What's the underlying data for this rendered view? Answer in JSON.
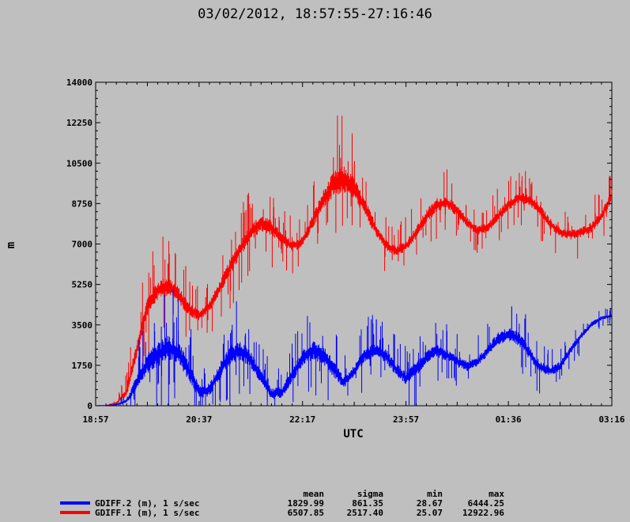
{
  "title": "03/02/2012, 18:57:55-27:16:46",
  "chart_data": {
    "type": "line",
    "title": "03/02/2012, 18:57:55-27:16:46",
    "xlabel": "UTC",
    "ylabel": "m",
    "ylim": [
      0,
      14000
    ],
    "yticks": [
      "0",
      "1750",
      "3500",
      "5250",
      "7000",
      "8750",
      "10500",
      "12250",
      "14000"
    ],
    "xticks": [
      "18:57",
      "20:37",
      "22:17",
      "23:57",
      "01:36",
      "03:16"
    ],
    "grid": false,
    "series": [
      {
        "name": "GDIFF.2 (m), 1 s/sec",
        "color": "#0000ff",
        "x": [
          "18:57",
          "19:07",
          "19:17",
          "19:27",
          "19:37",
          "19:47",
          "19:57",
          "20:07",
          "20:17",
          "20:27",
          "20:37",
          "20:47",
          "20:57",
          "21:07",
          "21:17",
          "21:27",
          "21:37",
          "21:47",
          "21:57",
          "22:07",
          "22:17",
          "22:27",
          "22:37",
          "22:47",
          "22:57",
          "23:07",
          "23:17",
          "23:27",
          "23:37",
          "23:47",
          "23:57",
          "00:07",
          "00:17",
          "00:27",
          "00:37",
          "00:47",
          "00:57",
          "01:06",
          "01:16",
          "01:26",
          "01:36",
          "01:46",
          "01:56",
          "02:06",
          "02:16",
          "02:26",
          "02:36",
          "02:46",
          "02:56",
          "03:06",
          "03:16"
        ],
        "values": [
          0,
          10,
          50,
          200,
          1000,
          1800,
          2200,
          2500,
          2300,
          1500,
          600,
          700,
          1500,
          2200,
          2400,
          2000,
          1200,
          500,
          600,
          1300,
          2100,
          2400,
          2200,
          1600,
          1000,
          1500,
          2200,
          2400,
          2200,
          1600,
          1200,
          1600,
          2100,
          2400,
          2200,
          1900,
          1700,
          1900,
          2400,
          2900,
          3100,
          2900,
          2300,
          1700,
          1500,
          1700,
          2400,
          3000,
          3500,
          3800,
          3900
        ],
        "spread": [
          0,
          5,
          30,
          100,
          600,
          800,
          900,
          900,
          800,
          700,
          500,
          500,
          600,
          700,
          700,
          600,
          500,
          400,
          400,
          500,
          600,
          700,
          700,
          600,
          400,
          400,
          500,
          500,
          500,
          450,
          450,
          500,
          500,
          500,
          450,
          400,
          350,
          350,
          400,
          450,
          500,
          500,
          450,
          400,
          350,
          350,
          300,
          250,
          200,
          150,
          100
        ],
        "stats": {
          "mean": "1829.99",
          "sigma": "861.35",
          "min": "28.67",
          "max": "6444.25"
        }
      },
      {
        "name": "GDIFF.1 (m), 1 s/sec",
        "color": "#ff0000",
        "x": [
          "18:57",
          "19:07",
          "19:17",
          "19:27",
          "19:37",
          "19:47",
          "19:57",
          "20:07",
          "20:17",
          "20:27",
          "20:37",
          "20:47",
          "20:57",
          "21:07",
          "21:17",
          "21:27",
          "21:37",
          "21:47",
          "21:57",
          "22:07",
          "22:17",
          "22:27",
          "22:37",
          "22:47",
          "22:57",
          "23:07",
          "23:17",
          "23:27",
          "23:37",
          "23:47",
          "23:57",
          "00:07",
          "00:17",
          "00:27",
          "00:37",
          "00:47",
          "00:57",
          "01:06",
          "01:16",
          "01:26",
          "01:36",
          "01:46",
          "01:56",
          "02:06",
          "02:16",
          "02:26",
          "02:36",
          "02:46",
          "02:56",
          "03:06",
          "03:16"
        ],
        "values": [
          0,
          10,
          100,
          600,
          2500,
          4300,
          5000,
          5200,
          4800,
          4200,
          3900,
          4300,
          5100,
          6000,
          6800,
          7500,
          7900,
          7700,
          7200,
          6900,
          7100,
          8000,
          8900,
          9600,
          9800,
          9400,
          8600,
          7700,
          7000,
          6700,
          6900,
          7500,
          8200,
          8700,
          8800,
          8400,
          7900,
          7600,
          7700,
          8200,
          8700,
          9000,
          8900,
          8500,
          7900,
          7500,
          7400,
          7500,
          7700,
          8200,
          9100
        ],
        "spread": [
          0,
          5,
          60,
          300,
          600,
          700,
          700,
          700,
          600,
          500,
          400,
          400,
          500,
          600,
          600,
          600,
          600,
          550,
          450,
          400,
          400,
          500,
          700,
          900,
          1000,
          800,
          600,
          500,
          400,
          400,
          400,
          450,
          500,
          500,
          450,
          400,
          350,
          350,
          350,
          400,
          400,
          400,
          400,
          400,
          400,
          350,
          350,
          350,
          400,
          400,
          400
        ],
        "stats": {
          "mean": "6507.85",
          "sigma": "2517.40",
          "min": "25.07",
          "max": "12922.96"
        }
      }
    ],
    "legend_placement": "bottom-left"
  },
  "stats_header": {
    "mean": "mean",
    "sigma": "sigma",
    "min": "min",
    "max": "max"
  }
}
